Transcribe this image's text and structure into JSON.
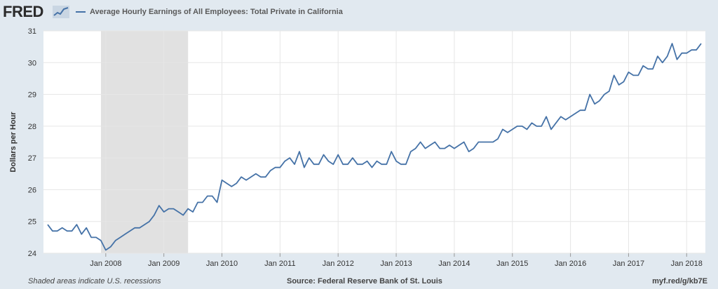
{
  "header": {
    "logo_text": "FRED",
    "logo_icon": "chart-line-icon",
    "legend_label": "Average Hourly Earnings of All Employees: Total Private in California"
  },
  "footer": {
    "recession_note": "Shaded areas indicate U.S. recessions",
    "source": "Source: Federal Reserve Bank of St. Louis",
    "short_url": "myf.red/g/kb7E"
  },
  "colors": {
    "background": "#e1e9f0",
    "plot_background": "#ffffff",
    "series_line": "#4572a7",
    "recession_shade": "#e1e1e1",
    "grid": "#e6e6e6"
  },
  "chart_data": {
    "type": "line",
    "title": "",
    "xlabel": "",
    "ylabel": "Dollars per Hour",
    "ylim": [
      24,
      31
    ],
    "yticks": [
      24,
      25,
      26,
      27,
      28,
      29,
      30,
      31
    ],
    "xticks": [
      "Jan 2008",
      "Jan 2009",
      "Jan 2010",
      "Jan 2011",
      "Jan 2012",
      "Jan 2013",
      "Jan 2014",
      "Jan 2015",
      "Jan 2016",
      "Jan 2017",
      "Jan 2018"
    ],
    "grid": true,
    "recession": {
      "start": "2007-12",
      "end": "2009-06"
    },
    "series": [
      {
        "name": "Average Hourly Earnings of All Employees: Total Private in California",
        "start": "2007-01",
        "values": [
          24.9,
          24.7,
          24.7,
          24.8,
          24.7,
          24.7,
          24.9,
          24.6,
          24.8,
          24.5,
          24.5,
          24.4,
          24.1,
          24.2,
          24.4,
          24.5,
          24.6,
          24.7,
          24.8,
          24.8,
          24.9,
          25.0,
          25.2,
          25.5,
          25.3,
          25.4,
          25.4,
          25.3,
          25.2,
          25.4,
          25.3,
          25.6,
          25.6,
          25.8,
          25.8,
          25.6,
          26.3,
          26.2,
          26.1,
          26.2,
          26.4,
          26.3,
          26.4,
          26.5,
          26.4,
          26.4,
          26.6,
          26.7,
          26.7,
          26.9,
          27.0,
          26.8,
          27.2,
          26.7,
          27.0,
          26.8,
          26.8,
          27.1,
          26.9,
          26.8,
          27.1,
          26.8,
          26.8,
          27.0,
          26.8,
          26.8,
          26.9,
          26.7,
          26.9,
          26.8,
          26.8,
          27.2,
          26.9,
          26.8,
          26.8,
          27.2,
          27.3,
          27.5,
          27.3,
          27.4,
          27.5,
          27.3,
          27.3,
          27.4,
          27.3,
          27.4,
          27.5,
          27.2,
          27.3,
          27.5,
          27.5,
          27.5,
          27.5,
          27.6,
          27.9,
          27.8,
          27.9,
          28.0,
          28.0,
          27.9,
          28.1,
          28.0,
          28.0,
          28.3,
          27.9,
          28.1,
          28.3,
          28.2,
          28.3,
          28.4,
          28.5,
          28.5,
          29.0,
          28.7,
          28.8,
          29.0,
          29.1,
          29.6,
          29.3,
          29.4,
          29.7,
          29.6,
          29.6,
          29.9,
          29.8,
          29.8,
          30.2,
          30.0,
          30.2,
          30.6,
          30.1,
          30.3,
          30.3,
          30.4,
          30.4,
          30.6
        ]
      }
    ]
  }
}
